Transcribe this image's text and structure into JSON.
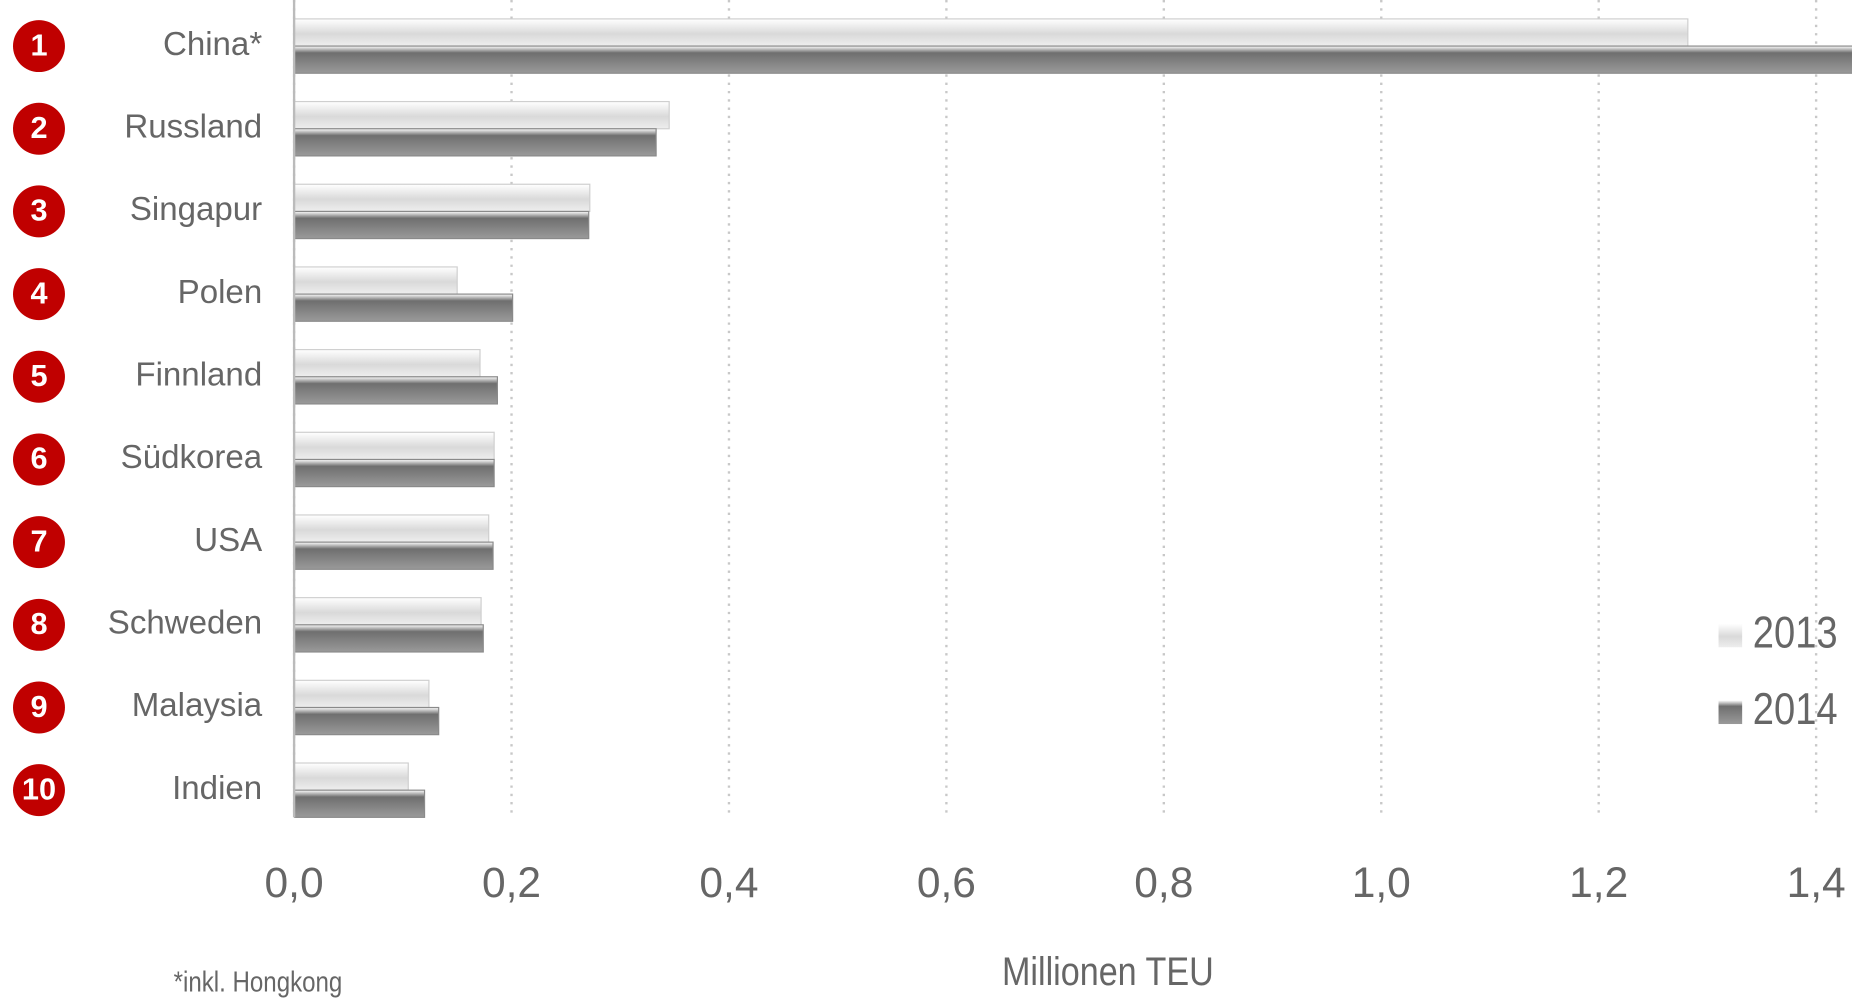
{
  "chart_data": {
    "type": "bar",
    "orientation": "horizontal",
    "categories": [
      "China*",
      "Russland",
      "Singapur",
      "Polen",
      "Finnland",
      "Südkorea",
      "USA",
      "Schweden",
      "Malaysia",
      "Indien"
    ],
    "ranks": [
      "1",
      "2",
      "3",
      "4",
      "5",
      "6",
      "7",
      "8",
      "9",
      "10"
    ],
    "series": [
      {
        "name": "2013",
        "color": "#d9d9d9",
        "values": [
          1.282,
          0.345,
          0.272,
          0.15,
          0.171,
          0.184,
          0.179,
          0.172,
          0.124,
          0.105
        ]
      },
      {
        "name": "2014",
        "color": "#6f6f6f",
        "values": [
          1.44,
          0.333,
          0.271,
          0.201,
          0.187,
          0.184,
          0.183,
          0.174,
          0.133,
          0.12
        ]
      }
    ],
    "xlim": [
      0,
      1.433
    ],
    "xticks": [
      {
        "value": 0,
        "label": "0,0"
      },
      {
        "value": 0.2,
        "label": "0,2"
      },
      {
        "value": 0.4,
        "label": "0,4"
      },
      {
        "value": 0.6,
        "label": "0,6"
      },
      {
        "value": 0.8,
        "label": "0,8"
      },
      {
        "value": 1.0,
        "label": "1,0"
      },
      {
        "value": 1.2,
        "label": "1,2"
      },
      {
        "value": 1.4,
        "label": "1,4"
      }
    ],
    "xlabel": "Millionen TEU",
    "footnote": "*inkl. Hongkong",
    "grid": true,
    "legend": "lower right"
  }
}
